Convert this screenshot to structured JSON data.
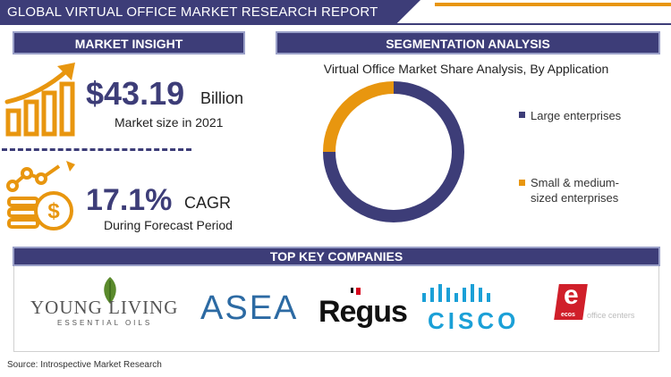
{
  "header": {
    "title": "GLOBAL VIRTUAL OFFICE MARKET RESEARCH REPORT",
    "colors": {
      "navy": "#3d3d78",
      "orange": "#e8960f"
    }
  },
  "market_insight": {
    "heading": "MARKET INSIGHT",
    "market_size_value": "$43.19",
    "market_size_unit": "Billion",
    "market_size_caption": "Market size in 2021",
    "cagr_value": "17.1%",
    "cagr_unit": "CAGR",
    "cagr_caption": "During Forecast Period",
    "icons": [
      "growth-chart-icon",
      "dollar-coins-icon"
    ]
  },
  "segmentation": {
    "heading": "SEGMENTATION ANALYSIS"
  },
  "chart_data": {
    "type": "pie",
    "style": "donut",
    "title": "Virtual Office Market Share Analysis, By Application",
    "categories": [
      "Large enterprises",
      "Small & medium-sized enterprises"
    ],
    "values": [
      75,
      25
    ],
    "colors": [
      "#3d3d78",
      "#e8960f"
    ],
    "legend_position": "right",
    "legend_lines": [
      [
        "Large enterprises"
      ],
      [
        "Small & medium-",
        "sized enterprises"
      ]
    ]
  },
  "companies": {
    "heading": "TOP KEY COMPANIES",
    "young_living": {
      "name": "YOUNG LIVING",
      "tagline": "ESSENTIAL OILS"
    },
    "asea": "ASEA",
    "regus": "Regus",
    "cisco": "CISCO",
    "ecos": {
      "mark": "e",
      "small": "ecos",
      "name": "office centers"
    }
  },
  "source": "Source: Introspective Market Research"
}
